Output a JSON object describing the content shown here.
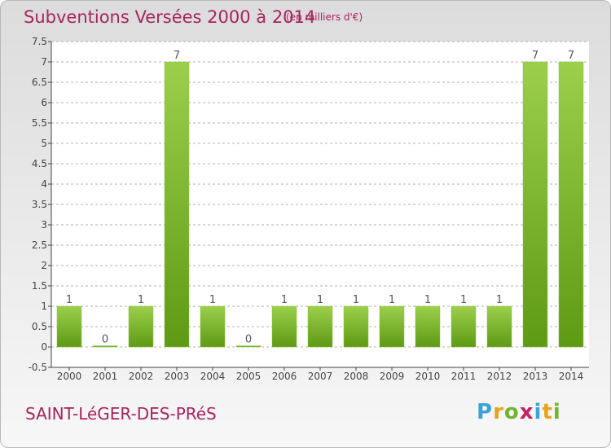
{
  "header": {
    "title": "Subventions Versées 2000 à 2014",
    "subtitle": "(en milliers d'€)"
  },
  "footer": {
    "place": "SAINT-LéGER-DES-PRéS",
    "logo": "Proxiti"
  },
  "colors": {
    "title": "#a8245f",
    "bar_top": "#9ccf4c",
    "bar_bottom": "#5e9a14",
    "grid": "#b0b0b0"
  },
  "chart_data": {
    "type": "bar",
    "title": "Subventions Versées 2000 à 2014",
    "subtitle": "(en milliers d'€)",
    "categories": [
      "2000",
      "2001",
      "2002",
      "2003",
      "2004",
      "2005",
      "2006",
      "2007",
      "2008",
      "2009",
      "2010",
      "2011",
      "2012",
      "2013",
      "2014"
    ],
    "values": [
      1,
      0,
      1,
      7,
      1,
      0,
      1,
      1,
      1,
      1,
      1,
      1,
      1,
      7,
      7
    ],
    "data_labels": [
      "1",
      "0",
      "1",
      "7",
      "1",
      "0",
      "1",
      "1",
      "1",
      "1",
      "1",
      "1",
      "1",
      "7",
      "7"
    ],
    "ylim": [
      -0.5,
      7.5
    ],
    "yticks": [
      -0.5,
      0,
      0.5,
      1,
      1.5,
      2,
      2.5,
      3,
      3.5,
      4,
      4.5,
      5,
      5.5,
      6,
      6.5,
      7,
      7.5
    ],
    "ytick_labels": [
      "-0.5",
      "0",
      "0.5",
      "1",
      "1.5",
      "2",
      "2.5",
      "3",
      "3.5",
      "4",
      "4.5",
      "5",
      "5.5",
      "6",
      "6.5",
      "7",
      "7.5"
    ],
    "grid": true,
    "legend": "none"
  }
}
